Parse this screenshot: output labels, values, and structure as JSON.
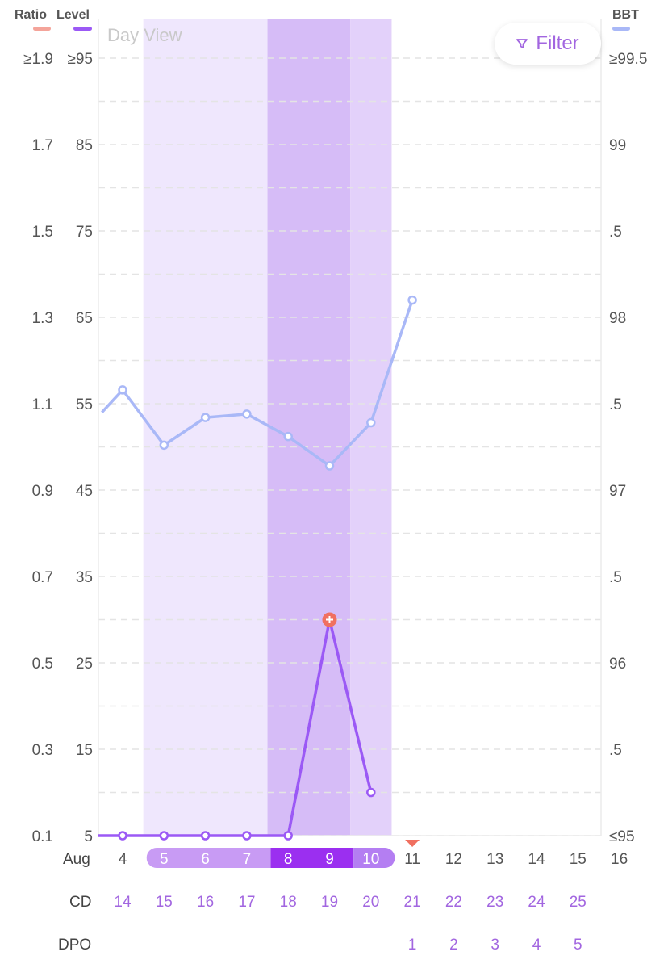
{
  "legend": {
    "ratio": {
      "label": "Ratio",
      "color": "#f4a49a"
    },
    "level": {
      "label": "Level",
      "color": "#9b59f5"
    },
    "bbt": {
      "label": "BBT",
      "color": "#a9b8f7"
    }
  },
  "view_label": "Day View",
  "filter": {
    "label": "Filter",
    "icon": "filter-icon"
  },
  "row_labels": {
    "month": "Aug",
    "cd": "CD",
    "dpo": "DPO"
  },
  "chart_data": {
    "type": "line",
    "x": [
      4,
      5,
      6,
      7,
      8,
      9,
      10,
      11,
      12,
      13,
      14,
      15,
      16
    ],
    "x_month": "Aug",
    "cd": [
      "14",
      "15",
      "16",
      "17",
      "18",
      "19",
      "20",
      "21",
      "22",
      "23",
      "24",
      "25",
      ""
    ],
    "dpo": [
      "",
      "",
      "",
      "",
      "",
      "",
      "",
      "1",
      "2",
      "3",
      "4",
      "5",
      ""
    ],
    "axes": {
      "ratio_ticks": [
        "≥1.9",
        "1.7",
        "1.5",
        "1.3",
        "1.1",
        "0.9",
        "0.7",
        "0.5",
        "0.3",
        "0.1"
      ],
      "level_ticks": [
        "≥95",
        "85",
        "75",
        "65",
        "55",
        "45",
        "35",
        "25",
        "15",
        "5"
      ],
      "level_range": [
        5,
        95
      ],
      "bbt_ticks": [
        "≥99.5",
        "99",
        ".5",
        "98",
        ".5",
        "97",
        ".5",
        "96",
        ".5",
        "≤95"
      ],
      "bbt_range": [
        95,
        99.5
      ]
    },
    "series": [
      {
        "name": "BBT",
        "color": "#a9b8f7",
        "x": [
          3.5,
          4,
          5,
          6,
          7,
          8,
          9,
          10,
          11
        ],
        "values": [
          97.45,
          97.58,
          97.26,
          97.42,
          97.44,
          97.31,
          97.14,
          97.39,
          98.1
        ]
      },
      {
        "name": "Level",
        "color": "#9b59f5",
        "x": [
          3.4,
          4,
          5,
          6,
          7,
          8,
          9,
          10
        ],
        "values": [
          5,
          5,
          5,
          5,
          5,
          5,
          30,
          10
        ]
      }
    ],
    "peak_marker": {
      "x": 9,
      "value": 30,
      "color": "#f07060"
    },
    "bands": [
      {
        "from": 5,
        "to": 7,
        "level": "low-fertility",
        "color": "#efe7fd"
      },
      {
        "from": 8,
        "to": 9,
        "level": "peak-fertility",
        "color": "#d6bcf7"
      },
      {
        "from": 10,
        "to": 10,
        "level": "high-fertility",
        "color": "#e3d1fa"
      }
    ],
    "highlight_days": [
      {
        "from": 5,
        "to": 7,
        "color": "#c89bf4"
      },
      {
        "from": 8,
        "to": 9,
        "color": "#9b2ff0"
      },
      {
        "from": 10,
        "to": 10,
        "color": "#b47ef2"
      }
    ],
    "period_marker": {
      "x": 11,
      "color": "#f07060"
    },
    "grid": true
  }
}
